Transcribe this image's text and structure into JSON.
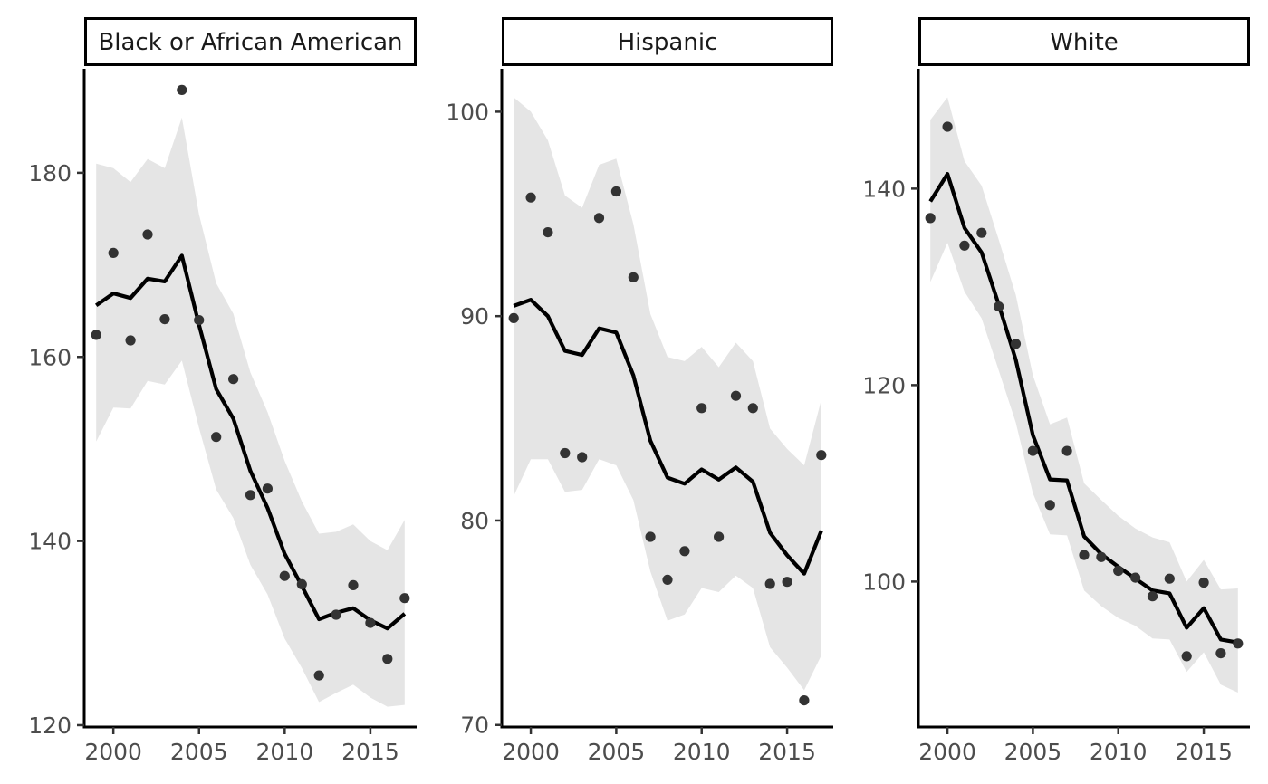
{
  "chart_data": [
    {
      "type": "line",
      "panel_title": "Black or African American",
      "x": [
        1999,
        2000,
        2001,
        2002,
        2003,
        2004,
        2005,
        2006,
        2007,
        2008,
        2009,
        2010,
        2011,
        2012,
        2013,
        2014,
        2015,
        2016,
        2017
      ],
      "points": [
        162.4,
        171.3,
        161.8,
        173.3,
        164.1,
        189.0,
        164.0,
        151.3,
        157.6,
        145.0,
        145.7,
        136.2,
        135.3,
        125.4,
        132.0,
        135.2,
        131.1,
        127.2,
        133.8
      ],
      "fitted": [
        165.6,
        166.9,
        166.4,
        168.5,
        168.2,
        171.0,
        163.5,
        156.5,
        153.3,
        147.6,
        143.6,
        138.6,
        135.1,
        131.5,
        132.2,
        132.7,
        131.4,
        130.5,
        132.1
      ],
      "lower": [
        150.8,
        154.5,
        154.4,
        157.4,
        157.0,
        159.6,
        152.3,
        145.6,
        142.5,
        137.4,
        134.2,
        129.4,
        126.2,
        122.5,
        123.5,
        124.4,
        123.0,
        122.0,
        122.2
      ],
      "upper": [
        181.0,
        180.5,
        179.0,
        181.5,
        180.5,
        186.0,
        175.5,
        168.0,
        164.7,
        158.3,
        154.0,
        148.7,
        144.3,
        140.8,
        141.0,
        141.8,
        140.0,
        139.0,
        142.3
      ],
      "xlim": [
        1998.3,
        2017.7
      ],
      "ylim": [
        119.8,
        191.3
      ],
      "xticks": [
        "2000",
        "2005",
        "2010",
        "2015"
      ],
      "yticks": [
        "120",
        "140",
        "160",
        "180"
      ]
    },
    {
      "type": "line",
      "panel_title": "Hispanic",
      "x": [
        1999,
        2000,
        2001,
        2002,
        2003,
        2004,
        2005,
        2006,
        2007,
        2008,
        2009,
        2010,
        2011,
        2012,
        2013,
        2014,
        2015,
        2016,
        2017
      ],
      "points": [
        89.9,
        95.8,
        94.1,
        83.3,
        83.1,
        94.8,
        96.1,
        91.9,
        79.2,
        77.1,
        78.5,
        85.5,
        79.2,
        86.1,
        85.5,
        76.9,
        77.0,
        71.2,
        83.2
      ],
      "fitted": [
        90.5,
        90.8,
        90.0,
        88.3,
        88.1,
        89.4,
        89.2,
        87.1,
        83.9,
        82.1,
        81.8,
        82.5,
        82.0,
        82.6,
        81.9,
        79.4,
        78.3,
        77.4,
        79.5
      ],
      "lower": [
        81.2,
        83.0,
        83.0,
        81.4,
        81.5,
        83.0,
        82.7,
        81.0,
        77.5,
        75.1,
        75.4,
        76.7,
        76.5,
        77.3,
        76.7,
        73.8,
        72.8,
        71.7,
        73.4
      ],
      "upper": [
        100.7,
        100.0,
        98.6,
        95.9,
        95.3,
        97.4,
        97.7,
        94.5,
        90.1,
        88.0,
        87.8,
        88.5,
        87.5,
        88.7,
        87.8,
        84.5,
        83.5,
        82.7,
        85.9
      ],
      "xlim": [
        1998.3,
        2017.7
      ],
      "ylim": [
        69.9,
        102.1
      ],
      "xticks": [
        "2000",
        "2005",
        "2010",
        "2015"
      ],
      "yticks": [
        "70",
        "80",
        "90",
        "100"
      ]
    },
    {
      "type": "line",
      "panel_title": "White",
      "x": [
        1999,
        2000,
        2001,
        2002,
        2003,
        2004,
        2005,
        2006,
        2007,
        2008,
        2009,
        2010,
        2011,
        2012,
        2013,
        2014,
        2015,
        2016,
        2017
      ],
      "points": [
        137.0,
        146.3,
        134.2,
        135.5,
        128.0,
        124.2,
        113.3,
        107.8,
        113.3,
        102.7,
        102.5,
        101.1,
        100.4,
        98.5,
        100.3,
        92.4,
        99.9,
        92.7,
        93.7
      ],
      "fitted": [
        138.7,
        141.5,
        136.0,
        133.5,
        128.2,
        122.6,
        114.9,
        110.4,
        110.3,
        104.6,
        102.8,
        101.5,
        100.3,
        99.1,
        98.8,
        95.3,
        97.3,
        94.1,
        93.8
      ],
      "lower": [
        130.5,
        134.5,
        129.5,
        126.8,
        121.5,
        116.2,
        109.0,
        104.8,
        104.7,
        99.1,
        97.5,
        96.3,
        95.5,
        94.2,
        94.1,
        90.8,
        92.8,
        89.5,
        88.7
      ],
      "upper": [
        147.0,
        149.3,
        142.8,
        140.3,
        134.8,
        129.2,
        121.0,
        116.0,
        116.7,
        110.0,
        108.3,
        106.7,
        105.4,
        104.5,
        104.0,
        100.0,
        102.2,
        99.2,
        99.3
      ],
      "xlim": [
        1998.3,
        2017.7
      ],
      "ylim": [
        85.2,
        152.2
      ],
      "xticks": [
        "2000",
        "2005",
        "2010",
        "2015"
      ],
      "yticks": [
        "100",
        "120",
        "140"
      ]
    }
  ]
}
